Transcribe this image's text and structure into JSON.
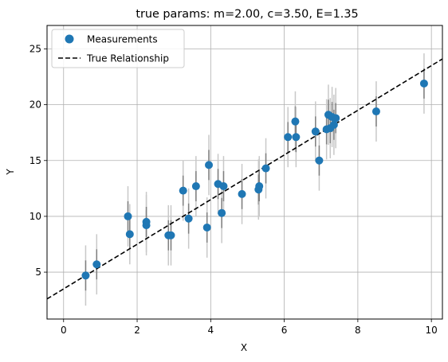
{
  "chart_data": {
    "type": "scatter",
    "title": "true params: m=2.00, c=3.50, E=1.35",
    "xlabel": "X",
    "ylabel": "Y",
    "xlim": [
      -0.45,
      10.3
    ],
    "ylim": [
      0.8,
      27.1
    ],
    "xticks": [
      0,
      2,
      4,
      6,
      8,
      10
    ],
    "yticks": [
      5,
      10,
      15,
      20,
      25
    ],
    "grid": true,
    "legend_position": "top-left",
    "colors": {
      "points": "#1f77b4",
      "line": "#000000",
      "error_outer": "#c8c8c8",
      "error_inner": "#7f7f7f",
      "grid": "#b0b0b0"
    },
    "series": [
      {
        "name": "Measurements",
        "kind": "scatter",
        "points": [
          {
            "x": 0.6,
            "y": 4.7
          },
          {
            "x": 0.9,
            "y": 5.7
          },
          {
            "x": 1.75,
            "y": 10.0
          },
          {
            "x": 1.8,
            "y": 8.4
          },
          {
            "x": 2.25,
            "y": 9.2
          },
          {
            "x": 2.25,
            "y": 9.5
          },
          {
            "x": 2.85,
            "y": 8.3
          },
          {
            "x": 2.92,
            "y": 8.3
          },
          {
            "x": 3.25,
            "y": 12.3
          },
          {
            "x": 3.4,
            "y": 9.8
          },
          {
            "x": 3.6,
            "y": 12.7
          },
          {
            "x": 3.9,
            "y": 9.0
          },
          {
            "x": 3.95,
            "y": 14.6
          },
          {
            "x": 4.2,
            "y": 12.9
          },
          {
            "x": 4.3,
            "y": 10.3
          },
          {
            "x": 4.35,
            "y": 12.7
          },
          {
            "x": 4.85,
            "y": 12.0
          },
          {
            "x": 5.3,
            "y": 12.4
          },
          {
            "x": 5.32,
            "y": 12.7
          },
          {
            "x": 5.5,
            "y": 14.3
          },
          {
            "x": 6.1,
            "y": 17.1
          },
          {
            "x": 6.3,
            "y": 18.5
          },
          {
            "x": 6.32,
            "y": 17.1
          },
          {
            "x": 6.85,
            "y": 17.6
          },
          {
            "x": 6.95,
            "y": 15.0
          },
          {
            "x": 7.15,
            "y": 17.8
          },
          {
            "x": 7.2,
            "y": 19.1
          },
          {
            "x": 7.25,
            "y": 17.9
          },
          {
            "x": 7.3,
            "y": 18.9
          },
          {
            "x": 7.35,
            "y": 18.2
          },
          {
            "x": 7.4,
            "y": 18.8
          },
          {
            "x": 8.5,
            "y": 19.4
          },
          {
            "x": 9.8,
            "y": 21.9
          }
        ],
        "error_inner": 1.35,
        "error_outer": 2.7
      },
      {
        "name": "True Relationship",
        "kind": "line",
        "slope": 2.0,
        "intercept": 3.5,
        "style": "dashed"
      }
    ]
  }
}
